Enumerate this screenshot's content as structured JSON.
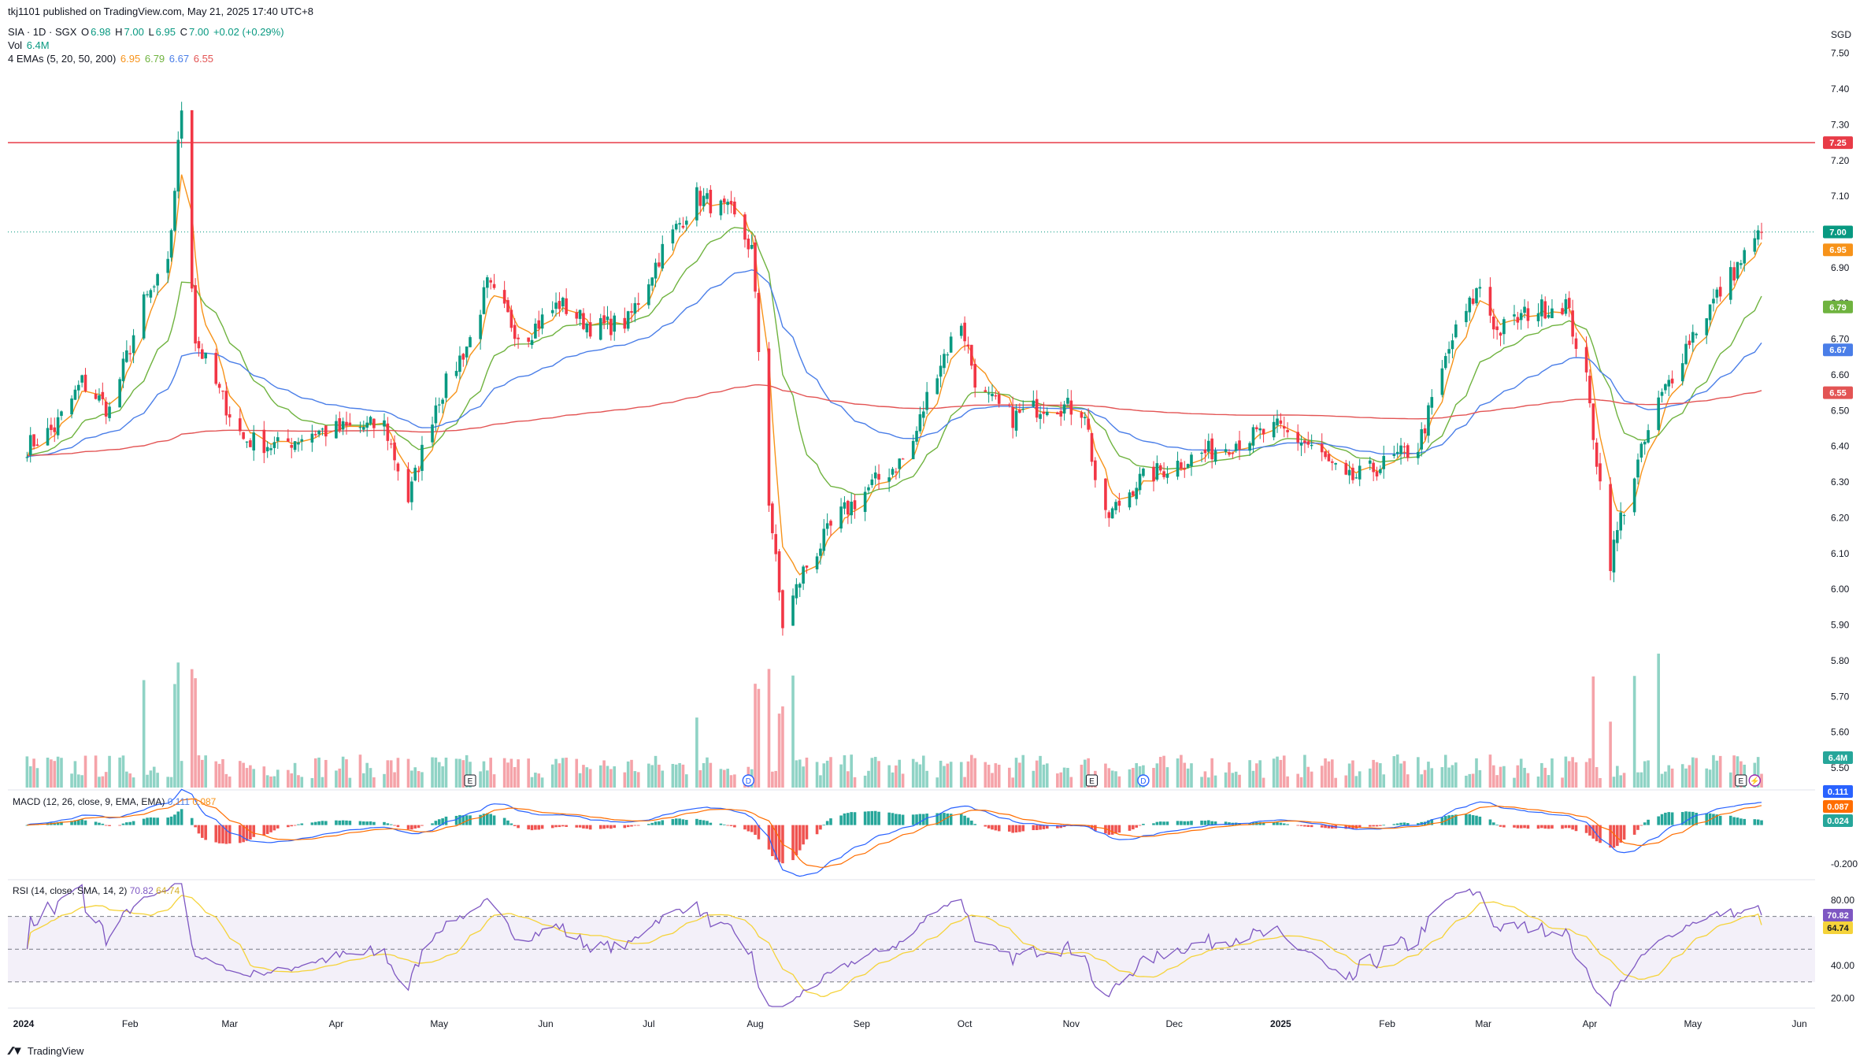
{
  "header": {
    "published": "tkj1101 published on TradingView.com, May 21, 2025 17:40 UTC+8",
    "symbol": "SIA · 1D · SGX",
    "o_label": "O",
    "o_value": "6.98",
    "h_label": "H",
    "h_value": "7.00",
    "l_label": "L",
    "l_value": "6.95",
    "c_label": "C",
    "c_value": "7.00",
    "change": "+0.02 (+0.29%)",
    "vol_label": "Vol",
    "vol_value": "6.4M",
    "ema_label": "4 EMAs (5, 20, 50, 200)",
    "ema_values": [
      "6.95",
      "6.79",
      "6.67",
      "6.55"
    ]
  },
  "macd_label": {
    "title": "MACD (12, 26, close, 9, EMA, EMA)",
    "v1": "0.111",
    "v2": "0.087"
  },
  "rsi_label": {
    "title": "RSI (14, close, SMA, 14, 2)",
    "v1": "70.82",
    "v2": "64.74"
  },
  "footer": {
    "brand": "TradingView"
  },
  "colors": {
    "up": "#089981",
    "down": "#f23645",
    "ema5": "#f7931a",
    "ema20": "#6fb33f",
    "ema50": "#4a7ee8",
    "ema200": "#e35454",
    "resistance": "#e83b47",
    "rsi": "#7e57c2",
    "rsi_ma": "#f5d33a"
  },
  "chart_data": {
    "type": "candlestick",
    "currency": "SGD",
    "price_axis_ticks": [
      "7.50",
      "7.40",
      "7.30",
      "7.20",
      "7.10",
      "7.00",
      "6.90",
      "6.80",
      "6.70",
      "6.60",
      "6.50",
      "6.40",
      "6.30",
      "6.20",
      "6.10",
      "6.00",
      "5.90",
      "5.80",
      "5.70",
      "5.60",
      "5.50"
    ],
    "ylim": [
      5.5,
      7.55
    ],
    "time_axis_labels": [
      "2024",
      "Feb",
      "Mar",
      "Apr",
      "May",
      "Jun",
      "Jul",
      "Aug",
      "Sep",
      "Oct",
      "Nov",
      "Dec",
      "2025",
      "Feb",
      "Mar",
      "Apr",
      "May",
      "Jun"
    ],
    "resistance_line": 7.25,
    "last_price": 7.0,
    "price_badges": [
      "7.25",
      "7.00",
      "6.95",
      "6.79",
      "6.67",
      "6.55",
      "6.4M"
    ],
    "close_path": [
      [
        "2024-01-02",
        6.4
      ],
      [
        "2024-01-10",
        6.45
      ],
      [
        "2024-01-18",
        6.58
      ],
      [
        "2024-01-26",
        6.5
      ],
      [
        "2024-02-05",
        6.8
      ],
      [
        "2024-02-12",
        6.9
      ],
      [
        "2024-02-16",
        7.35
      ],
      [
        "2024-02-20",
        6.7
      ],
      [
        "2024-02-27",
        6.55
      ],
      [
        "2024-03-05",
        6.42
      ],
      [
        "2024-03-15",
        6.4
      ],
      [
        "2024-03-25",
        6.44
      ],
      [
        "2024-04-05",
        6.45
      ],
      [
        "2024-04-15",
        6.46
      ],
      [
        "2024-04-22",
        6.25
      ],
      [
        "2024-04-30",
        6.52
      ],
      [
        "2024-05-10",
        6.7
      ],
      [
        "2024-05-15",
        6.85
      ],
      [
        "2024-05-25",
        6.7
      ],
      [
        "2024-06-05",
        6.8
      ],
      [
        "2024-06-15",
        6.73
      ],
      [
        "2024-06-25",
        6.75
      ],
      [
        "2024-07-05",
        6.95
      ],
      [
        "2024-07-15",
        7.1
      ],
      [
        "2024-07-25",
        7.05
      ],
      [
        "2024-07-31",
        6.95
      ],
      [
        "2024-08-05",
        6.25
      ],
      [
        "2024-08-09",
        5.9
      ],
      [
        "2024-08-15",
        6.05
      ],
      [
        "2024-08-25",
        6.2
      ],
      [
        "2024-09-05",
        6.3
      ],
      [
        "2024-09-15",
        6.38
      ],
      [
        "2024-09-22",
        6.6
      ],
      [
        "2024-09-30",
        6.75
      ],
      [
        "2024-10-05",
        6.55
      ],
      [
        "2024-10-15",
        6.48
      ],
      [
        "2024-10-25",
        6.52
      ],
      [
        "2024-11-05",
        6.5
      ],
      [
        "2024-11-10",
        6.18
      ],
      [
        "2024-11-20",
        6.3
      ],
      [
        "2024-12-01",
        6.35
      ],
      [
        "2024-12-15",
        6.4
      ],
      [
        "2024-12-31",
        6.45
      ],
      [
        "2025-01-10",
        6.4
      ],
      [
        "2025-01-20",
        6.3
      ],
      [
        "2025-01-31",
        6.35
      ],
      [
        "2025-02-10",
        6.4
      ],
      [
        "2025-02-20",
        6.7
      ],
      [
        "2025-02-28",
        6.85
      ],
      [
        "2025-03-05",
        6.72
      ],
      [
        "2025-03-15",
        6.78
      ],
      [
        "2025-03-25",
        6.8
      ],
      [
        "2025-03-31",
        6.58
      ],
      [
        "2025-04-07",
        6.08
      ],
      [
        "2025-04-10",
        6.2
      ],
      [
        "2025-04-20",
        6.5
      ],
      [
        "2025-04-30",
        6.7
      ],
      [
        "2025-05-10",
        6.85
      ],
      [
        "2025-05-21",
        7.0
      ]
    ],
    "ema_series": [
      {
        "name": "EMA 5",
        "last": 6.95
      },
      {
        "name": "EMA 20",
        "last": 6.79
      },
      {
        "name": "EMA 50",
        "last": 6.67
      },
      {
        "name": "EMA 200",
        "last": 6.55
      }
    ],
    "volume": {
      "last": "6.4M"
    },
    "macd": {
      "axis_ticks": [
        "0.111",
        "0.087",
        "0.024",
        "-0.200"
      ],
      "macd_last": 0.111,
      "signal_last": 0.087,
      "hist_last": 0.024
    },
    "rsi": {
      "axis_ticks": [
        "80.00",
        "70.82",
        "64.74",
        "40.00",
        "20.00"
      ],
      "rsi_last": 70.82,
      "ma_last": 64.74,
      "bands": [
        30,
        50,
        70
      ]
    },
    "event_markers": [
      {
        "date": "2024-05-10",
        "label": "E"
      },
      {
        "date": "2024-07-30",
        "label": "D"
      },
      {
        "date": "2024-11-07",
        "label": "E"
      },
      {
        "date": "2024-11-22",
        "label": "D"
      },
      {
        "date": "2025-05-15",
        "label": "E"
      },
      {
        "date": "2025-05-19",
        "label": "⚡"
      }
    ]
  }
}
